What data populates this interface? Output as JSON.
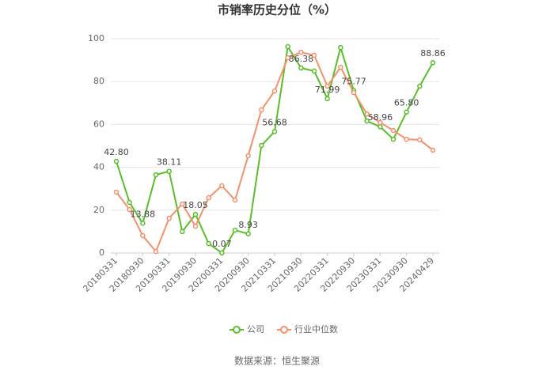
{
  "chart_data": {
    "type": "line",
    "title": "市销率历史分位（%）",
    "source": "数据来源：恒生聚源",
    "categories": [
      "20180331",
      null,
      "20180930",
      null,
      "20190331",
      null,
      "20190930",
      null,
      "20200331",
      null,
      "20200930",
      null,
      "20210331",
      null,
      "20210930",
      null,
      "20220331",
      null,
      "20220930",
      null,
      "20230331",
      null,
      "20230930",
      null,
      "20240429"
    ],
    "series": [
      {
        "name": "公司",
        "color": "#5bbd2b",
        "values": [
          42.8,
          23.6,
          13.88,
          36.5,
          38.11,
          10,
          18.05,
          4.4,
          0.07,
          10.7,
          8.93,
          50.2,
          56.68,
          96.3,
          86.38,
          84.9,
          71.99,
          95.9,
          75.77,
          61.6,
          58.96,
          53.1,
          65.8,
          77.9,
          88.86
        ],
        "value_labels": [
          "42.80",
          null,
          "13.88",
          null,
          "38.11",
          null,
          "18.05",
          null,
          "0.07",
          null,
          "8.93",
          null,
          "56.68",
          null,
          "86.38",
          null,
          "71.99",
          null,
          "75.77",
          null,
          "58.96",
          null,
          "65.80",
          null,
          "88.86"
        ]
      },
      {
        "name": "行业中位数",
        "color": "#f3916b",
        "values": [
          28.4,
          20.3,
          8.1,
          0.7,
          16.2,
          22.9,
          12.5,
          25.8,
          31.4,
          24.7,
          45.4,
          66.8,
          75.6,
          91.1,
          93.7,
          92.3,
          77.9,
          86.7,
          74.9,
          64.9,
          60.9,
          57.2,
          53.1,
          52.8,
          48
        ]
      }
    ],
    "ylim": [
      0,
      100
    ],
    "yticks": [
      0,
      20,
      40,
      60,
      80,
      100
    ],
    "grid": true,
    "legend": "bottom"
  }
}
